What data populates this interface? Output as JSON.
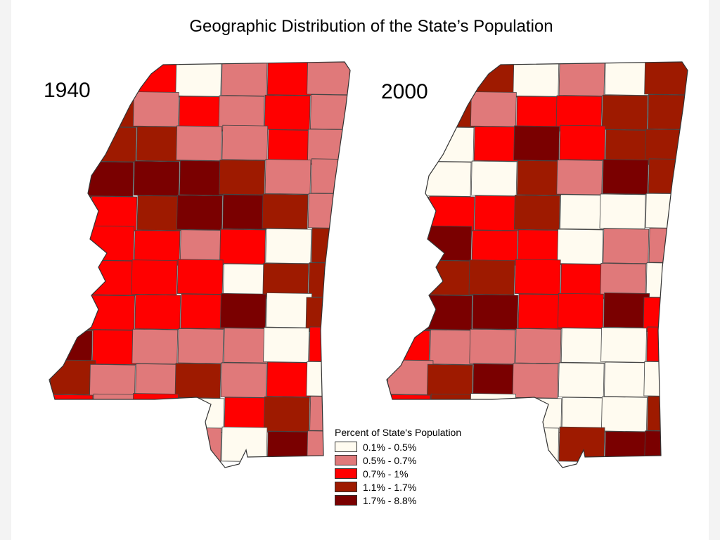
{
  "title": "Geographic Distribution of the State’s Population",
  "maps": [
    {
      "year": "1940"
    },
    {
      "year": "2000"
    }
  ],
  "legend": {
    "title": "Percent of State's Population",
    "classes": [
      {
        "label": "0.1% - 0.5%",
        "color": "#fffbf0"
      },
      {
        "label": "0.5% - 0.7%",
        "color": "#e0797a"
      },
      {
        "label": "0.7% - 1%",
        "color": "#ff0000"
      },
      {
        "label": "1.1% - 1.7%",
        "color": "#9e1a00"
      },
      {
        "label": "1.7% - 8.8%",
        "color": "#7a0000"
      }
    ]
  },
  "map_data": {
    "1940": [
      1,
      2,
      2,
      0,
      1,
      2,
      1,
      2,
      3,
      1,
      2,
      1,
      2,
      1,
      3,
      3,
      3,
      1,
      1,
      2,
      1,
      3,
      4,
      4,
      4,
      3,
      1,
      1,
      0,
      2,
      3,
      4,
      4,
      3,
      1,
      1,
      2,
      2,
      1,
      2,
      0,
      3,
      3,
      2,
      2,
      2,
      0,
      3,
      3,
      3,
      2,
      2,
      2,
      4,
      0,
      3,
      4,
      2,
      1,
      1,
      1,
      0,
      2,
      3,
      1,
      1,
      3,
      1,
      2,
      0,
      2,
      1,
      2,
      0,
      2,
      3,
      1,
      0,
      0,
      1,
      1,
      0,
      4,
      1
    ],
    "2000": [
      4,
      2,
      3,
      0,
      1,
      0,
      3,
      3,
      3,
      1,
      2,
      2,
      3,
      3,
      3,
      0,
      2,
      4,
      2,
      3,
      3,
      0,
      0,
      0,
      3,
      1,
      4,
      3,
      3,
      2,
      2,
      3,
      0,
      0,
      0,
      3,
      4,
      2,
      2,
      0,
      1,
      1,
      0,
      3,
      3,
      2,
      2,
      1,
      0,
      4,
      4,
      4,
      2,
      2,
      4,
      2,
      2,
      1,
      1,
      1,
      0,
      0,
      2,
      1,
      3,
      4,
      1,
      0,
      0,
      0,
      2,
      3,
      0,
      0,
      0,
      0,
      3,
      3,
      4,
      0,
      0,
      3,
      4,
      4
    ]
  }
}
